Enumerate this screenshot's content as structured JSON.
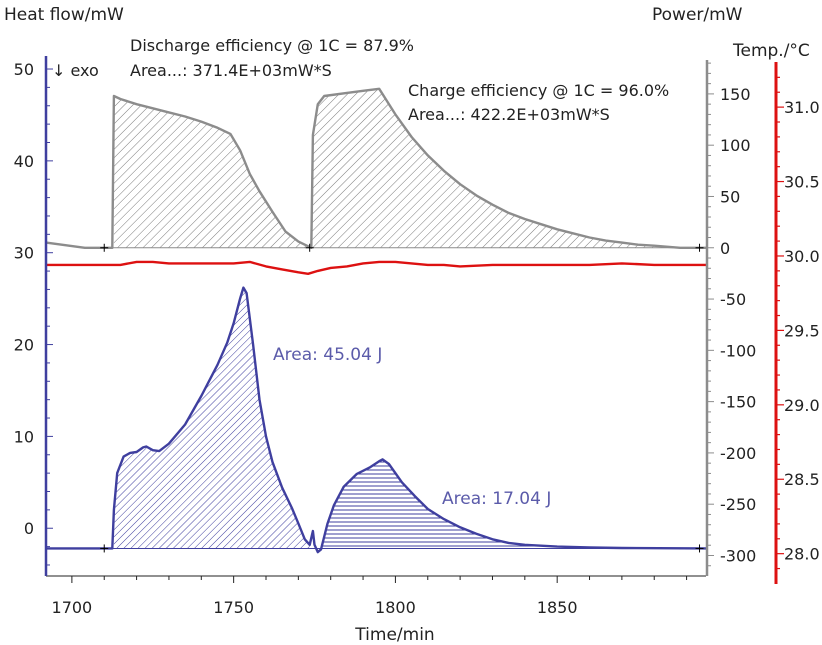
{
  "chart_data": {
    "type": "line",
    "xlabel": "Time/min",
    "x_ticks": [
      1700,
      1750,
      1800,
      1850
    ],
    "xlim": [
      1692,
      1896
    ],
    "axes": {
      "heat_flow": {
        "label": "Heat flow/mW",
        "ticks": [
          0,
          10,
          20,
          30,
          40,
          50
        ],
        "ylim": [
          -5.2,
          51.2
        ],
        "exo_label": "↓ exo",
        "color": "#3f3f9f"
      },
      "power": {
        "label": "Power/mW",
        "ticks": [
          -300,
          -250,
          -200,
          -150,
          -100,
          -50,
          0,
          50,
          100,
          150
        ],
        "ylim": [
          -320,
          185
        ],
        "color": "#8c8c8c"
      },
      "temperature": {
        "label": "Temp./°C",
        "ticks": [
          "28.0",
          "28.5",
          "29.0",
          "29.5",
          "30.0",
          "30.5",
          "31.0"
        ],
        "ylim": [
          27.85,
          31.33
        ],
        "color": "#dd1111"
      }
    },
    "series": [
      {
        "name": "Power",
        "axis": "power",
        "color": "#8c8c8c",
        "points": [
          [
            1692,
            5
          ],
          [
            1704,
            0
          ],
          [
            1712.5,
            0
          ],
          [
            1713,
            148
          ],
          [
            1715,
            145
          ],
          [
            1720,
            140
          ],
          [
            1725,
            136
          ],
          [
            1730,
            132
          ],
          [
            1735,
            128
          ],
          [
            1740,
            123
          ],
          [
            1745,
            117
          ],
          [
            1749,
            111
          ],
          [
            1752,
            95
          ],
          [
            1755,
            72
          ],
          [
            1758,
            55
          ],
          [
            1762,
            35
          ],
          [
            1766,
            16
          ],
          [
            1770,
            6
          ],
          [
            1774,
            0
          ],
          [
            1774.5,
            110
          ],
          [
            1776,
            140
          ],
          [
            1778,
            148
          ],
          [
            1785,
            151
          ],
          [
            1790,
            153
          ],
          [
            1795,
            155
          ],
          [
            1800,
            130
          ],
          [
            1805,
            108
          ],
          [
            1810,
            90
          ],
          [
            1815,
            75
          ],
          [
            1820,
            62
          ],
          [
            1825,
            51
          ],
          [
            1830,
            42
          ],
          [
            1835,
            34
          ],
          [
            1840,
            28
          ],
          [
            1845,
            23
          ],
          [
            1850,
            18
          ],
          [
            1855,
            14
          ],
          [
            1860,
            10
          ],
          [
            1865,
            7
          ],
          [
            1870,
            5
          ],
          [
            1875,
            3
          ],
          [
            1880,
            2
          ],
          [
            1888,
            0
          ],
          [
            1896,
            0
          ]
        ]
      },
      {
        "name": "Temperature",
        "axis": "temperature",
        "color": "#dd1111",
        "points": [
          [
            1692,
            29.94
          ],
          [
            1700,
            29.94
          ],
          [
            1710,
            29.94
          ],
          [
            1715,
            29.94
          ],
          [
            1720,
            29.96
          ],
          [
            1725,
            29.96
          ],
          [
            1730,
            29.95
          ],
          [
            1735,
            29.95
          ],
          [
            1740,
            29.95
          ],
          [
            1745,
            29.95
          ],
          [
            1750,
            29.95
          ],
          [
            1755,
            29.96
          ],
          [
            1760,
            29.93
          ],
          [
            1765,
            29.91
          ],
          [
            1770,
            29.89
          ],
          [
            1773,
            29.88
          ],
          [
            1776,
            29.9
          ],
          [
            1780,
            29.92
          ],
          [
            1785,
            29.93
          ],
          [
            1790,
            29.95
          ],
          [
            1795,
            29.96
          ],
          [
            1800,
            29.96
          ],
          [
            1805,
            29.95
          ],
          [
            1810,
            29.94
          ],
          [
            1815,
            29.94
          ],
          [
            1820,
            29.93
          ],
          [
            1830,
            29.94
          ],
          [
            1840,
            29.94
          ],
          [
            1850,
            29.94
          ],
          [
            1860,
            29.94
          ],
          [
            1870,
            29.95
          ],
          [
            1880,
            29.94
          ],
          [
            1896,
            29.94
          ]
        ]
      },
      {
        "name": "Heat flow",
        "axis": "heat_flow",
        "color": "#3f3f9f",
        "points": [
          [
            1692,
            -2.2
          ],
          [
            1700,
            -2.2
          ],
          [
            1712.5,
            -2.2
          ],
          [
            1713,
            2
          ],
          [
            1714,
            6
          ],
          [
            1716,
            7.8
          ],
          [
            1718,
            8.2
          ],
          [
            1720,
            8.3
          ],
          [
            1722,
            8.8
          ],
          [
            1723,
            8.9
          ],
          [
            1725,
            8.5
          ],
          [
            1727,
            8.4
          ],
          [
            1730,
            9.2
          ],
          [
            1735,
            11.3
          ],
          [
            1740,
            14.4
          ],
          [
            1745,
            17.8
          ],
          [
            1748,
            20.2
          ],
          [
            1750,
            22.3
          ],
          [
            1752,
            25
          ],
          [
            1753,
            26.2
          ],
          [
            1754,
            25.6
          ],
          [
            1756,
            20
          ],
          [
            1758,
            14
          ],
          [
            1760,
            10
          ],
          [
            1762,
            7.2
          ],
          [
            1765,
            4.4
          ],
          [
            1768,
            2.2
          ],
          [
            1770,
            0.5
          ],
          [
            1772,
            -1.2
          ],
          [
            1773.5,
            -1.8
          ],
          [
            1774.5,
            -0.3
          ],
          [
            1775,
            -1.8
          ],
          [
            1776,
            -2.6
          ],
          [
            1777,
            -2.3
          ],
          [
            1779,
            0.5
          ],
          [
            1781,
            2.5
          ],
          [
            1784,
            4.5
          ],
          [
            1788,
            5.9
          ],
          [
            1792,
            6.6
          ],
          [
            1795,
            7.3
          ],
          [
            1796,
            7.5
          ],
          [
            1798,
            7
          ],
          [
            1802,
            5
          ],
          [
            1806,
            3.5
          ],
          [
            1810,
            2.1
          ],
          [
            1815,
            1
          ],
          [
            1820,
            0.1
          ],
          [
            1825,
            -0.6
          ],
          [
            1830,
            -1.2
          ],
          [
            1835,
            -1.6
          ],
          [
            1840,
            -1.8
          ],
          [
            1850,
            -2
          ],
          [
            1860,
            -2.1
          ],
          [
            1870,
            -2.15
          ],
          [
            1896,
            -2.2
          ]
        ]
      }
    ],
    "annotations": [
      {
        "text": "Discharge efficiency @ 1C = 87.9%"
      },
      {
        "text": "Area...: 371.4E+03mW*S"
      },
      {
        "text": "Charge efficiency @ 1C = 96.0%"
      },
      {
        "text": "Area...: 422.2E+03mW*S"
      },
      {
        "text": "Area: 45.04 J"
      },
      {
        "text": "Area: 17.04 J"
      }
    ],
    "integration_limits": {
      "power": [
        [
          1710,
          0
        ],
        [
          1773.5,
          0
        ],
        [
          1894,
          0
        ]
      ],
      "heat_flow": [
        [
          1710,
          -2.2
        ],
        [
          1894,
          -2.2
        ]
      ]
    },
    "shaded_regions": [
      {
        "series": "Power",
        "from": 1713,
        "to": 1773.5,
        "hatch": "diagonal"
      },
      {
        "series": "Power",
        "from": 1774,
        "to": 1892,
        "hatch": "diagonal"
      },
      {
        "series": "Heat flow",
        "from": 1713,
        "to": 1773.5,
        "hatch": "diagonal"
      },
      {
        "series": "Heat flow",
        "from": 1777,
        "to": 1890,
        "hatch": "horizontal"
      }
    ],
    "grid": false
  }
}
